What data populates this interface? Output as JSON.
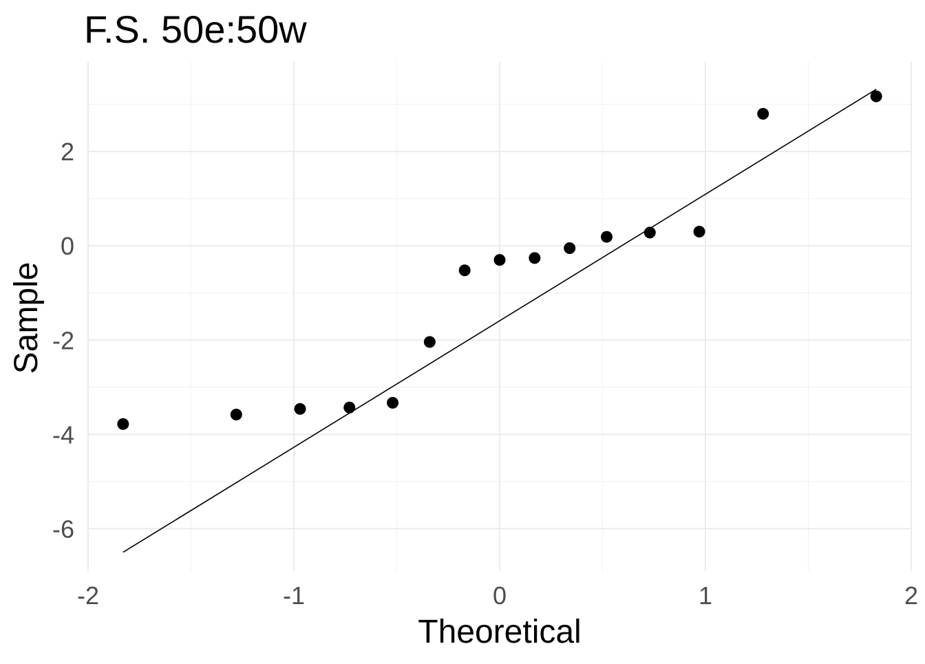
{
  "chart_data": {
    "type": "scatter",
    "title": "F.S. 50e:50w",
    "xlabel": "Theoretical",
    "ylabel": "Sample",
    "xlim": [
      -2,
      2
    ],
    "ylim": [
      -6.9,
      3.9
    ],
    "x_ticks": [
      -2,
      -1,
      0,
      1,
      2
    ],
    "x_tick_labels": [
      "-2",
      "-1",
      "0",
      "1",
      "2"
    ],
    "y_ticks": [
      -6,
      -4,
      -2,
      0,
      2
    ],
    "y_tick_labels": [
      "-6",
      "-4",
      "-2",
      "0",
      "2"
    ],
    "grid": true,
    "points": {
      "x": [
        -1.83,
        -1.28,
        -0.97,
        -0.73,
        -0.52,
        -0.34,
        -0.17,
        0.0,
        0.17,
        0.34,
        0.52,
        0.73,
        0.97,
        1.28,
        1.83
      ],
      "y": [
        -3.78,
        -3.58,
        -3.46,
        -3.43,
        -3.33,
        -2.04,
        -0.52,
        -0.3,
        -0.26,
        -0.05,
        0.19,
        0.28,
        0.3,
        2.8,
        3.17
      ]
    },
    "reference_line": {
      "x": [
        -1.83,
        1.83
      ],
      "y": [
        -6.5,
        3.32
      ]
    }
  }
}
